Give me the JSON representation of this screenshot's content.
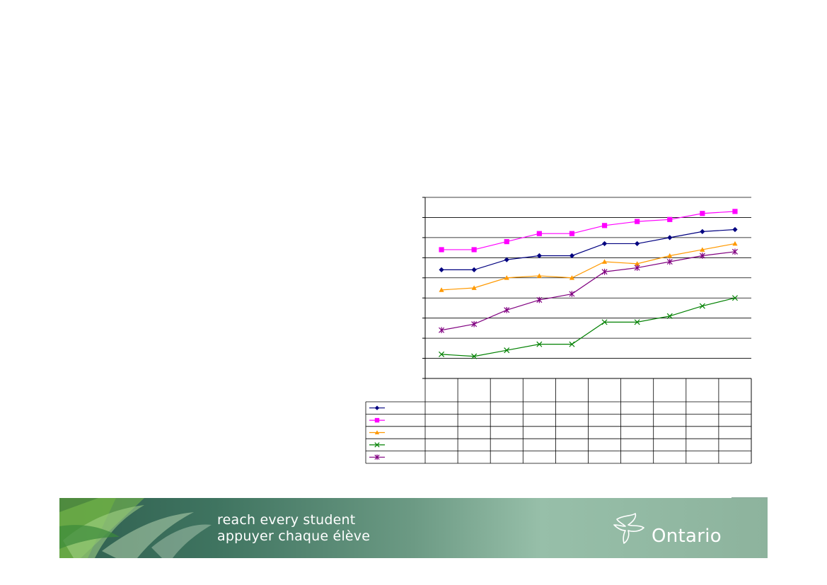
{
  "banner": {
    "line1": "reach every student",
    "line2": "appuyer chaque élève",
    "logo_text": "Ontario"
  },
  "chart_data": {
    "type": "line",
    "title": "",
    "xlabel": "",
    "ylabel": "",
    "ylim": [
      0,
      9
    ],
    "grid": true,
    "legend": "data-table-left",
    "categories": [
      "",
      "",
      "",
      "",
      "",
      "",
      "",
      "",
      "",
      ""
    ],
    "series": [
      {
        "name": "",
        "color": "#000080",
        "marker": "diamond",
        "values": [
          5.4,
          5.4,
          5.9,
          6.1,
          6.1,
          6.7,
          6.7,
          7.0,
          7.3,
          7.4
        ]
      },
      {
        "name": "",
        "color": "#ff00ff",
        "marker": "square",
        "values": [
          6.4,
          6.4,
          6.8,
          7.2,
          7.2,
          7.6,
          7.8,
          7.9,
          8.2,
          8.3
        ]
      },
      {
        "name": "",
        "color": "#ff9900",
        "marker": "triangle",
        "values": [
          4.4,
          4.5,
          5.0,
          5.1,
          5.0,
          5.8,
          5.7,
          6.1,
          6.4,
          6.7
        ]
      },
      {
        "name": "",
        "color": "#008000",
        "marker": "x",
        "values": [
          1.2,
          1.1,
          1.4,
          1.7,
          1.7,
          2.8,
          2.8,
          3.1,
          3.6,
          4.0
        ]
      },
      {
        "name": "",
        "color": "#800080",
        "marker": "star",
        "values": [
          2.4,
          2.7,
          3.4,
          3.9,
          4.2,
          5.3,
          5.5,
          5.8,
          6.1,
          6.3
        ]
      }
    ]
  }
}
